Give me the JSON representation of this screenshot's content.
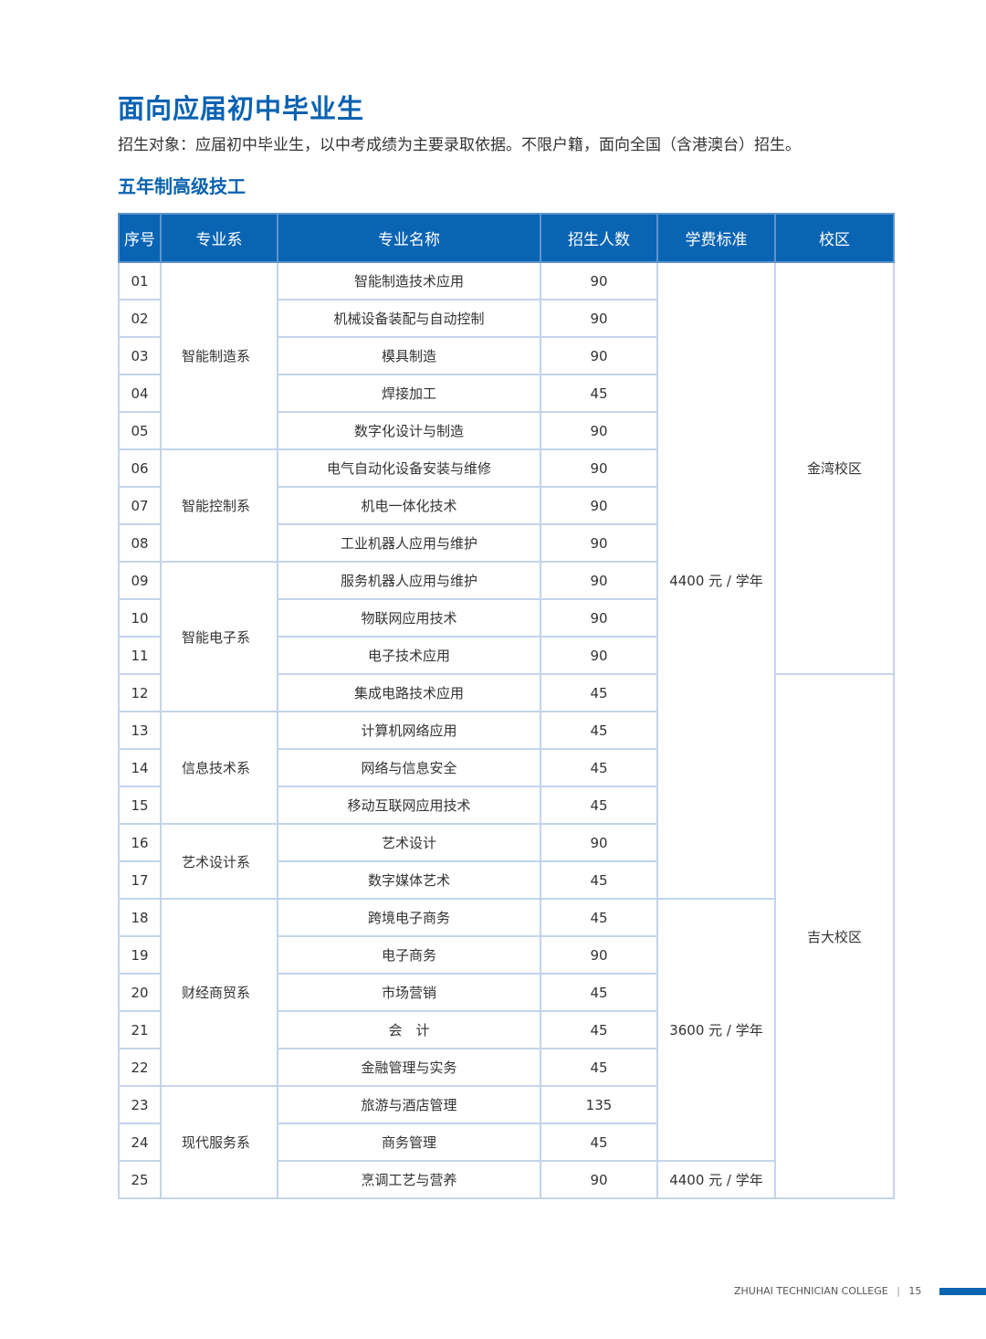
{
  "title": "面向应届初中毕业生",
  "intro": "招生对象：应届初中毕业生，以中考成绩为主要录取依据。不限户籍，面向全国（含港澳台）招生。",
  "subtitle": "五年制高级技工",
  "table": {
    "headers": [
      "序号",
      "专业系",
      "专业名称",
      "招生人数",
      "学费标准",
      "校区"
    ],
    "rows": [
      [
        "01",
        "智能制造技术应用",
        "90"
      ],
      [
        "02",
        "机械设备装配与自动控制",
        "90"
      ],
      [
        "03",
        "模具制造",
        "90"
      ],
      [
        "04",
        "焊接加工",
        "45"
      ],
      [
        "05",
        "数字化设计与制造",
        "90"
      ],
      [
        "06",
        "电气自动化设备安装与维修",
        "90"
      ],
      [
        "07",
        "机电一体化技术",
        "90"
      ],
      [
        "08",
        "工业机器人应用与维护",
        "90"
      ],
      [
        "09",
        "服务机器人应用与维护",
        "90"
      ],
      [
        "10",
        "物联网应用技术",
        "90"
      ],
      [
        "11",
        "电子技术应用",
        "90"
      ],
      [
        "12",
        "集成电路技术应用",
        "45"
      ],
      [
        "13",
        "计算机网络应用",
        "45"
      ],
      [
        "14",
        "网络与信息安全",
        "45"
      ],
      [
        "15",
        "移动互联网应用技术",
        "45"
      ],
      [
        "16",
        "艺术设计",
        "90"
      ],
      [
        "17",
        "数字媒体艺术",
        "45"
      ],
      [
        "18",
        "跨境电子商务",
        "45"
      ],
      [
        "19",
        "电子商务",
        "90"
      ],
      [
        "20",
        "市场营销",
        "45"
      ],
      [
        "21",
        "会　计",
        "45"
      ],
      [
        "22",
        "金融管理与实务",
        "45"
      ],
      [
        "23",
        "旅游与酒店管理",
        "135"
      ],
      [
        "24",
        "商务管理",
        "45"
      ],
      [
        "25",
        "烹调工艺与营养",
        "90"
      ]
    ],
    "departments": [
      {
        "name": "智能制造系",
        "span": 5
      },
      {
        "name": "智能控制系",
        "span": 3
      },
      {
        "name": "智能电子系",
        "span": 4
      },
      {
        "name": "信息技术系",
        "span": 3
      },
      {
        "name": "艺术设计系",
        "span": 2
      },
      {
        "name": "财经商贸系",
        "span": 5
      },
      {
        "name": "现代服务系",
        "span": 3
      }
    ],
    "fees": [
      {
        "name": "4400 元 / 学年",
        "span": 17
      },
      {
        "name": "3600 元 / 学年",
        "span": 7
      },
      {
        "name": "4400 元 / 学年",
        "span": 1
      }
    ],
    "campuses": [
      {
        "name": "金湾校区",
        "span": 11
      },
      {
        "name": "吉大校区",
        "span": 14
      }
    ]
  },
  "footer": {
    "college": "ZHUHAI TECHNICIAN COLLEGE",
    "separator": "|",
    "page": "15"
  },
  "colors": {
    "accent": "#0a64b4",
    "border": "#c3d4ec"
  }
}
